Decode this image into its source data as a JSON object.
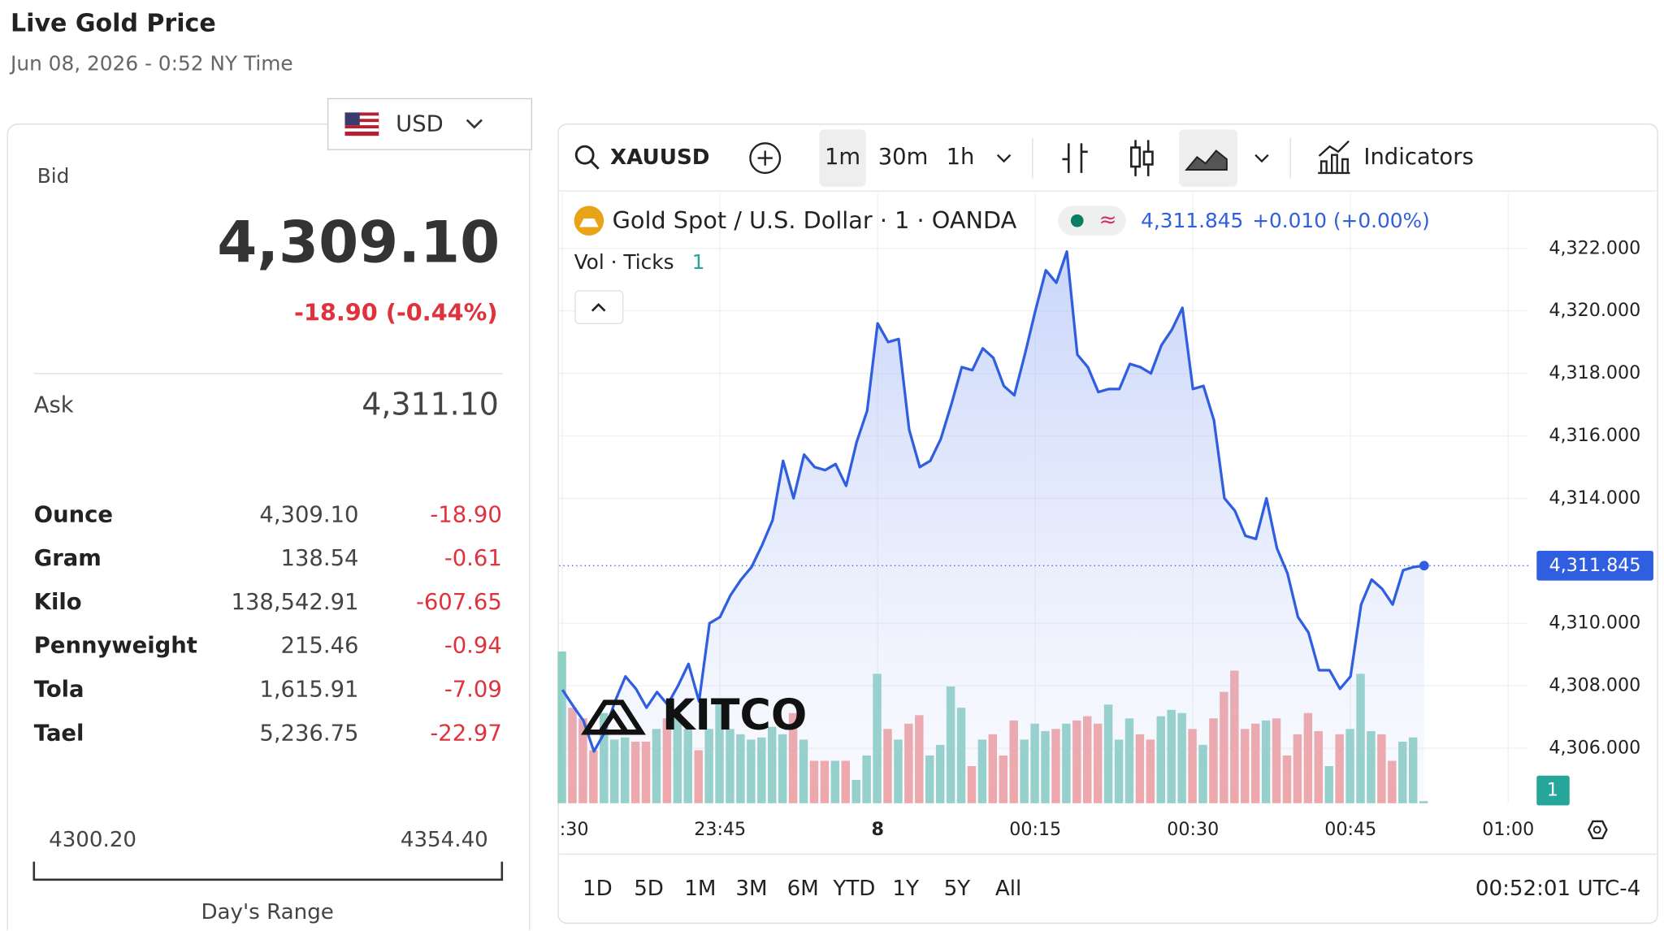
{
  "header": {
    "title": "Live Gold Price",
    "date": "Jun 08, 2026 - 0:52 NY Time"
  },
  "currency": "USD",
  "quote": {
    "bid_label": "Bid",
    "bid": "4,309.10",
    "change": "-18.90 (-0.44%)",
    "ask_label": "Ask",
    "ask": "4,311.10"
  },
  "table": {
    "rows": [
      [
        "Ounce",
        "4,309.10",
        "-18.90"
      ],
      [
        "Gram",
        "138.54",
        "-0.61"
      ],
      [
        "Kilo",
        "138,542.91",
        "-607.65"
      ],
      [
        "Pennyweight",
        "215.46",
        "-0.94"
      ],
      [
        "Tola",
        "1,615.91",
        "-7.09"
      ],
      [
        "Tael",
        "5,236.75",
        "-22.97"
      ]
    ]
  },
  "range": {
    "low": "4300.20",
    "high": "4354.40",
    "label": "Day's Range"
  },
  "toolbar": {
    "symbol": "XAUUSD",
    "intervals": [
      "1m",
      "30m",
      "1h"
    ],
    "indicators": "Indicators"
  },
  "watermark": "KITCO",
  "periods": [
    "1D",
    "5D",
    "1M",
    "3M",
    "6M",
    "YTD",
    "1Y",
    "5Y",
    "All"
  ],
  "clock": "00:52:01 UTC-4",
  "chart_data": {
    "type": "line",
    "legend_change": "+0.010 (+0.00%)",
    "xlim": [
      -0.3,
      91.9
    ],
    "xticks": [
      {
        "value": 0,
        "label": ":30"
      },
      {
        "value": 15,
        "label": "23:45"
      },
      {
        "value": 30,
        "label": "8"
      },
      {
        "value": 45,
        "label": "00:15"
      },
      {
        "value": 60,
        "label": "00:30"
      },
      {
        "value": 75,
        "label": "00:45"
      },
      {
        "value": 90,
        "label": "01:00"
      }
    ],
    "ylim": [
      4304.24,
      4323.77
    ],
    "yticks": [
      {
        "value": 4306,
        "label": "4,306.000"
      },
      {
        "value": 4308,
        "label": "4,308.000"
      },
      {
        "value": 4310,
        "label": "4,310.000"
      },
      {
        "value": 4314,
        "label": "4,314.000"
      },
      {
        "value": 4316,
        "label": "4,316.000"
      },
      {
        "value": 4318,
        "label": "4,318.000"
      },
      {
        "value": 4320,
        "label": "4,320.000"
      },
      {
        "value": 4322,
        "label": "4,322.000"
      }
    ],
    "grid": true,
    "series": [
      {
        "name": "Gold Spot / U.S. Dollar · 1 · OANDA",
        "color": "#2f5fe0",
        "value_label": "4,311.845",
        "values": [
          4307.87,
          4307.36,
          4306.88,
          4305.9,
          4306.5,
          4307.5,
          4308.3,
          4307.9,
          4307.3,
          4307.8,
          4307.4,
          4308.0,
          4308.7,
          4307.5,
          4310.0,
          4310.2,
          4310.9,
          4311.4,
          4311.8,
          4312.5,
          4313.3,
          4315.2,
          4314.0,
          4315.4,
          4315.0,
          4314.9,
          4315.1,
          4314.4,
          4315.8,
          4316.8,
          4319.6,
          4319.0,
          4319.1,
          4316.2,
          4315.0,
          4315.2,
          4315.9,
          4317.0,
          4318.2,
          4318.1,
          4318.8,
          4318.5,
          4317.6,
          4317.3,
          4318.6,
          4320.0,
          4321.3,
          4320.9,
          4321.9,
          4318.6,
          4318.2,
          4317.4,
          4317.5,
          4317.5,
          4318.3,
          4318.2,
          4318.0,
          4318.9,
          4319.4,
          4320.1,
          4317.5,
          4317.6,
          4316.5,
          4314.0,
          4313.6,
          4312.8,
          4312.7,
          4314.0,
          4312.4,
          4311.6,
          4310.2,
          4309.7,
          4308.5,
          4308.5,
          4307.9,
          4308.3,
          4310.6,
          4311.4,
          4311.1,
          4310.6,
          4311.7,
          4311.8,
          4311.845
        ]
      },
      {
        "name": "Vol · Ticks",
        "value_label": "1",
        "up_color": "#8fd0c5",
        "down_color": "#f2a3a3",
        "values": [
          143,
          90,
          80,
          50,
          85,
          60,
          62,
          58,
          58,
          70,
          80,
          85,
          70,
          50,
          70,
          95,
          70,
          65,
          60,
          62,
          72,
          65,
          85,
          60,
          40,
          40,
          40,
          40,
          22,
          45,
          122,
          70,
          60,
          75,
          83,
          45,
          55,
          110,
          90,
          35,
          60,
          65,
          45,
          78,
          60,
          75,
          68,
          70,
          75,
          78,
          82,
          75,
          93,
          60,
          80,
          65,
          60,
          82,
          88,
          85,
          70,
          55,
          80,
          105,
          125,
          70,
          75,
          78,
          80,
          45,
          65,
          85,
          68,
          35,
          65,
          70,
          122,
          68,
          65,
          40,
          58,
          62,
          2
        ]
      }
    ]
  }
}
